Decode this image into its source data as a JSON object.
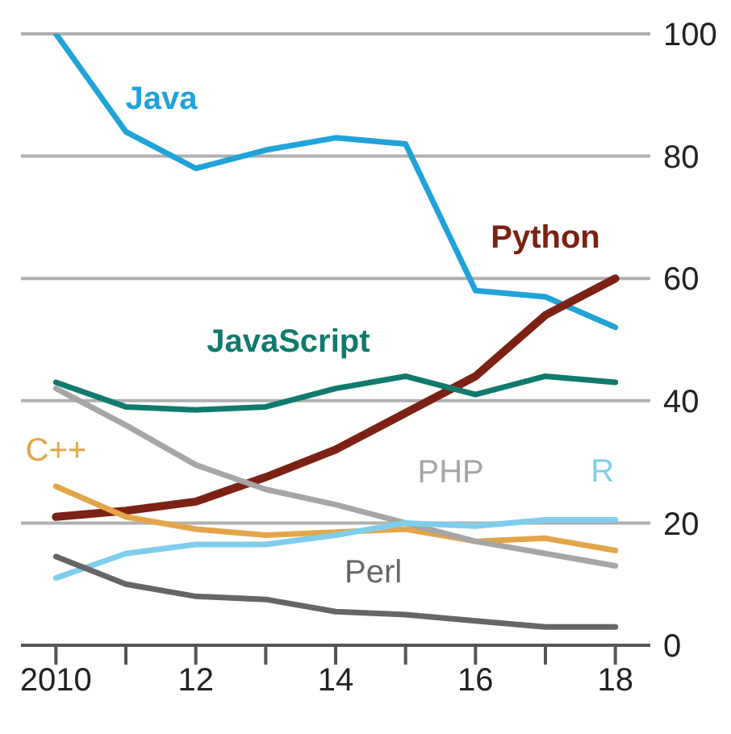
{
  "chart_data": {
    "type": "line",
    "x": [
      2010,
      2011,
      2012,
      2013,
      2014,
      2015,
      2016,
      2017,
      2018
    ],
    "series": [
      {
        "name": "Java",
        "color": "#1fa3d8",
        "values": [
          100,
          84,
          78,
          81,
          83,
          82,
          58,
          57,
          52
        ]
      },
      {
        "name": "Python",
        "color": "#7b2214",
        "values": [
          21,
          22,
          23.5,
          27.5,
          32,
          38,
          44,
          54,
          60
        ]
      },
      {
        "name": "JavaScript",
        "color": "#117a6e",
        "values": [
          43,
          39,
          38.5,
          39,
          42,
          44,
          41,
          44,
          43
        ]
      },
      {
        "name": "C++",
        "color": "#e3a54a",
        "values": [
          26,
          21,
          19,
          18,
          18.5,
          19,
          17,
          17.5,
          15.5
        ]
      },
      {
        "name": "PHP",
        "color": "#a6a6a6",
        "values": [
          42,
          36,
          29.5,
          25.5,
          23,
          20,
          17,
          15,
          13
        ]
      },
      {
        "name": "R",
        "color": "#7fcdee",
        "values": [
          11,
          15,
          16.5,
          16.5,
          18,
          20,
          19.5,
          20.5,
          20.5
        ]
      },
      {
        "name": "Perl",
        "color": "#666666",
        "values": [
          14.5,
          10,
          8,
          7.5,
          5.5,
          5,
          4,
          3,
          3
        ]
      }
    ],
    "xlim": [
      2009.5,
      2018.5
    ],
    "xticks": [
      {
        "value": 2010,
        "label": "2010"
      },
      {
        "value": 2011,
        "label": null
      },
      {
        "value": 2012,
        "label": "12"
      },
      {
        "value": 2013,
        "label": null
      },
      {
        "value": 2014,
        "label": "14"
      },
      {
        "value": 2015,
        "label": null
      },
      {
        "value": 2016,
        "label": "16"
      },
      {
        "value": 2017,
        "label": null
      },
      {
        "value": 2018,
        "label": "18"
      }
    ],
    "ylim": [
      0,
      100
    ],
    "yticks": [
      0,
      20,
      40,
      60,
      80,
      100
    ],
    "grid": "y",
    "legend": false,
    "marker": "none",
    "line_style": "solid"
  }
}
